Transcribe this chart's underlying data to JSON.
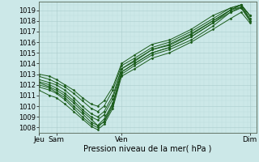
{
  "bg_color": "#cce8e8",
  "plot_bg_color": "#cce8e8",
  "grid_color_major": "#aacccc",
  "grid_color_minor": "#bbdddd",
  "line_color": "#1a5c1a",
  "marker_color": "#1a5c1a",
  "xlabel": "Pression niveau de la mer( hPa )",
  "ylim": [
    1007.5,
    1019.8
  ],
  "xlim": [
    0.0,
    1.0
  ],
  "yticks": [
    1008,
    1009,
    1010,
    1011,
    1012,
    1013,
    1014,
    1015,
    1016,
    1017,
    1018,
    1019
  ],
  "xtick_positions": [
    0.0,
    0.08,
    0.38,
    0.97
  ],
  "xtick_labels": [
    "Jeu",
    "Sam",
    "Ven",
    "Dim"
  ],
  "lines": [
    [
      0.0,
      1012.2,
      0.05,
      1011.8,
      0.08,
      1011.5,
      0.12,
      1011.0,
      0.16,
      1010.3,
      0.2,
      1009.5,
      0.24,
      1008.8,
      0.27,
      1008.2,
      0.3,
      1008.5,
      0.34,
      1010.0,
      0.38,
      1013.0,
      0.44,
      1013.8,
      0.52,
      1014.8,
      0.6,
      1015.3,
      0.7,
      1016.2,
      0.8,
      1017.5,
      0.88,
      1018.8,
      0.93,
      1019.3,
      0.97,
      1018.2
    ],
    [
      0.0,
      1011.8,
      0.05,
      1011.5,
      0.08,
      1011.2,
      0.12,
      1010.6,
      0.16,
      1009.8,
      0.2,
      1009.0,
      0.24,
      1008.3,
      0.27,
      1008.0,
      0.3,
      1008.6,
      0.34,
      1010.2,
      0.38,
      1013.2,
      0.44,
      1014.0,
      0.52,
      1015.0,
      0.6,
      1015.5,
      0.7,
      1016.5,
      0.8,
      1017.8,
      0.88,
      1019.0,
      0.93,
      1019.5,
      0.97,
      1018.5
    ],
    [
      0.0,
      1012.5,
      0.05,
      1012.2,
      0.08,
      1012.0,
      0.12,
      1011.5,
      0.16,
      1010.8,
      0.2,
      1010.0,
      0.24,
      1009.3,
      0.27,
      1009.0,
      0.3,
      1009.5,
      0.34,
      1011.0,
      0.38,
      1013.5,
      0.44,
      1014.2,
      0.52,
      1015.3,
      0.6,
      1015.8,
      0.7,
      1016.8,
      0.8,
      1018.0,
      0.88,
      1019.0,
      0.93,
      1019.5,
      0.97,
      1018.5
    ],
    [
      0.0,
      1012.8,
      0.05,
      1012.5,
      0.08,
      1012.2,
      0.12,
      1011.8,
      0.16,
      1011.2,
      0.2,
      1010.5,
      0.24,
      1009.8,
      0.27,
      1009.5,
      0.3,
      1010.0,
      0.34,
      1011.5,
      0.38,
      1013.8,
      0.44,
      1014.5,
      0.52,
      1015.5,
      0.6,
      1016.0,
      0.7,
      1017.0,
      0.8,
      1018.2,
      0.88,
      1019.2,
      0.93,
      1019.5,
      0.97,
      1018.2
    ],
    [
      0.0,
      1012.0,
      0.05,
      1011.7,
      0.08,
      1011.3,
      0.12,
      1010.8,
      0.16,
      1010.0,
      0.2,
      1009.3,
      0.24,
      1008.5,
      0.27,
      1008.2,
      0.3,
      1008.8,
      0.34,
      1010.3,
      0.38,
      1013.2,
      0.44,
      1014.0,
      0.52,
      1015.0,
      0.6,
      1015.5,
      0.7,
      1016.5,
      0.8,
      1017.8,
      0.88,
      1018.8,
      0.93,
      1019.2,
      0.97,
      1018.0
    ],
    [
      0.0,
      1011.5,
      0.05,
      1011.0,
      0.08,
      1010.8,
      0.12,
      1010.2,
      0.16,
      1009.5,
      0.2,
      1008.8,
      0.24,
      1008.1,
      0.27,
      1007.8,
      0.3,
      1008.3,
      0.34,
      1009.8,
      0.38,
      1012.8,
      0.44,
      1013.5,
      0.52,
      1014.5,
      0.6,
      1015.0,
      0.7,
      1016.0,
      0.8,
      1017.2,
      0.88,
      1018.2,
      0.93,
      1018.8,
      0.97,
      1017.8
    ],
    [
      0.0,
      1013.0,
      0.05,
      1012.8,
      0.08,
      1012.5,
      0.12,
      1012.0,
      0.16,
      1011.5,
      0.2,
      1010.8,
      0.24,
      1010.2,
      0.27,
      1010.0,
      0.3,
      1010.5,
      0.34,
      1011.8,
      0.38,
      1014.0,
      0.44,
      1014.8,
      0.52,
      1015.8,
      0.6,
      1016.2,
      0.7,
      1017.2,
      0.8,
      1018.5,
      0.88,
      1019.2,
      0.93,
      1019.5,
      0.97,
      1018.5
    ],
    [
      0.0,
      1012.3,
      0.05,
      1012.0,
      0.08,
      1011.7,
      0.12,
      1011.2,
      0.16,
      1010.5,
      0.2,
      1009.7,
      0.24,
      1009.0,
      0.27,
      1008.7,
      0.3,
      1009.2,
      0.34,
      1010.7,
      0.38,
      1013.5,
      0.44,
      1014.3,
      0.52,
      1015.3,
      0.6,
      1015.7,
      0.7,
      1016.7,
      0.8,
      1018.0,
      0.88,
      1019.0,
      0.93,
      1019.3,
      0.97,
      1018.0
    ]
  ]
}
